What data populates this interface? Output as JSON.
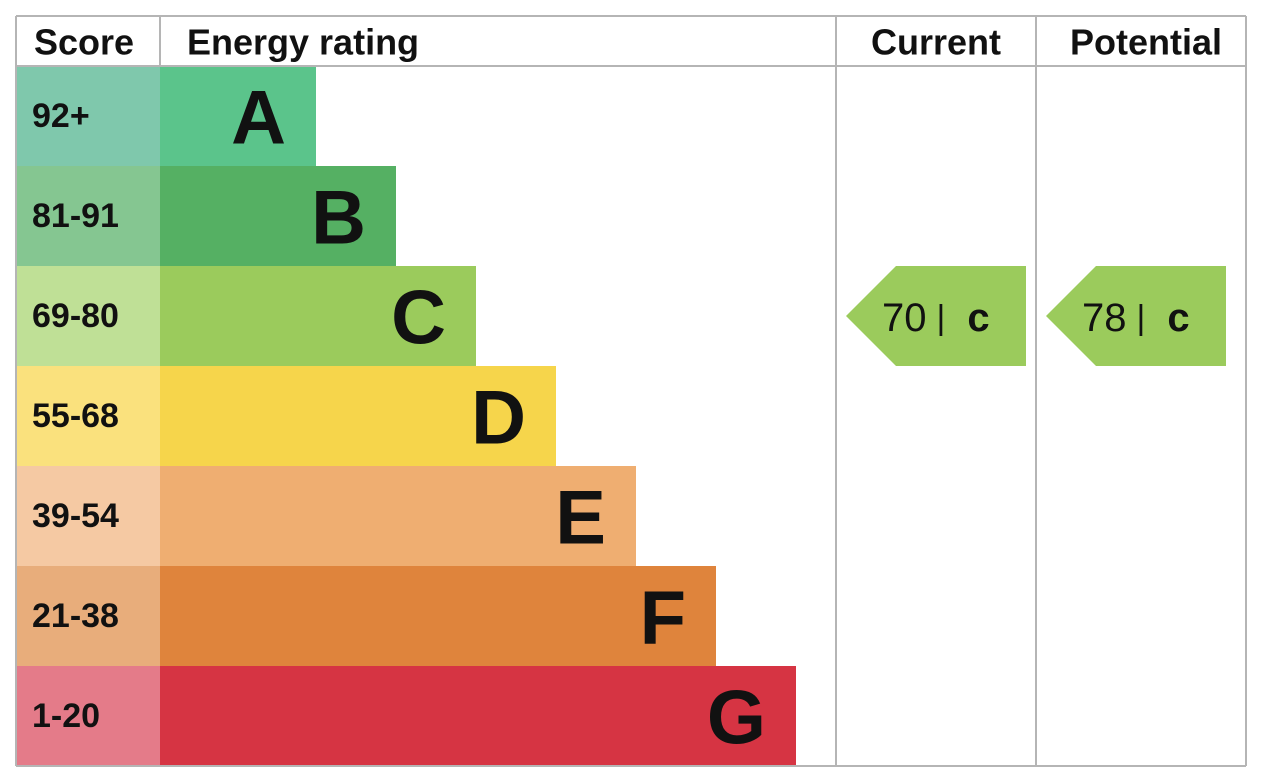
{
  "header": {
    "score": "Score",
    "rating": "Energy rating",
    "current": "Current",
    "potential": "Potential"
  },
  "bands": [
    {
      "score": "92+",
      "letter": "A",
      "color": "#5bc48b",
      "score_color": "#7fc8ac"
    },
    {
      "score": "81-91",
      "letter": "B",
      "color": "#55b063",
      "score_color": "#85c691"
    },
    {
      "score": "69-80",
      "letter": "C",
      "color": "#9bcb5c",
      "score_color": "#bfe096"
    },
    {
      "score": "55-68",
      "letter": "D",
      "color": "#f6d54b",
      "score_color": "#fae17d"
    },
    {
      "score": "39-54",
      "letter": "E",
      "color": "#efae71",
      "score_color": "#f5c9a3"
    },
    {
      "score": "21-38",
      "letter": "F",
      "color": "#df843c",
      "score_color": "#e8ad7b"
    },
    {
      "score": "1-20",
      "letter": "G",
      "color": "#d63443",
      "score_color": "#e47b89"
    }
  ],
  "current": {
    "value": 70,
    "separator": "|",
    "letter": "c"
  },
  "potential": {
    "value": 78,
    "separator": "|",
    "letter": "c"
  }
}
